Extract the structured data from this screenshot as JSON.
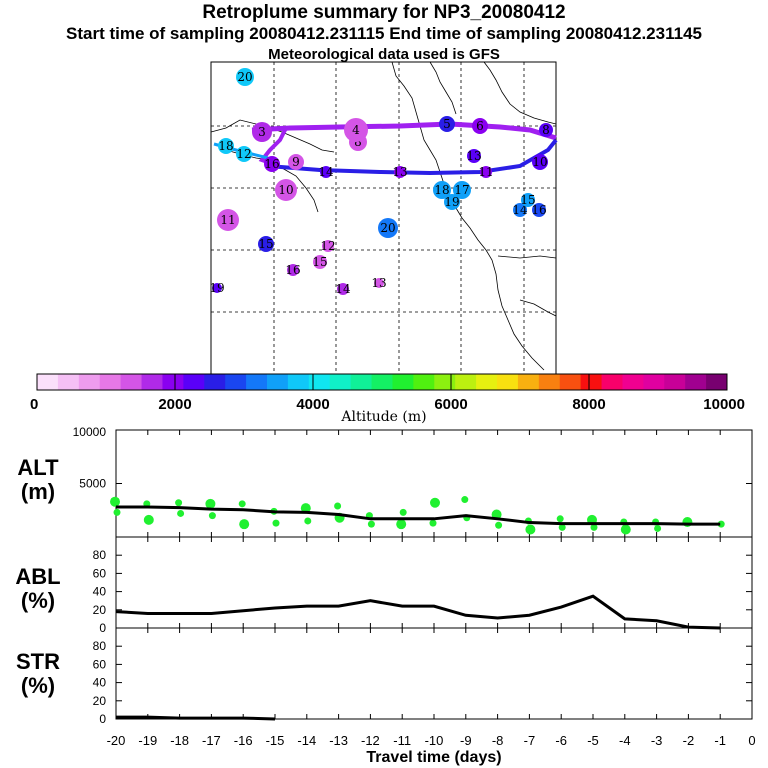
{
  "header": {
    "title": "Retroplume summary for NP3_20080412",
    "sampling_line": "Start time of sampling 20080412.231115     End time of sampling 20080412.231145",
    "met_line": "Meteorological data used is GFS"
  },
  "colorbar": {
    "tick_labels": [
      "0",
      "2000",
      "4000",
      "6000",
      "8000",
      "10000"
    ],
    "label": "Altitude (m)",
    "colors": [
      "#fbe0fb",
      "#f5c0f5",
      "#ee9cee",
      "#e678e6",
      "#d455e6",
      "#b02ae8",
      "#8a00f0",
      "#5a00f8",
      "#2a1ee6",
      "#1a46f0",
      "#1478f8",
      "#10a0f8",
      "#10c8f8",
      "#10e6f0",
      "#10f0c8",
      "#10f098",
      "#14f064",
      "#20f030",
      "#50f010",
      "#8cf010",
      "#bcf010",
      "#e6f010",
      "#f8e010",
      "#f8b010",
      "#f88010",
      "#f85010",
      "#f81010",
      "#f8006a",
      "#f00090",
      "#e000a0",
      "#c80098",
      "#a00090",
      "#780070"
    ]
  },
  "map": {
    "markers": [
      {
        "label": "20",
        "color": "#10c8f8"
      },
      {
        "label": "3",
        "color": "#b02ae8"
      },
      {
        "label": "8",
        "color": "#d455e6"
      },
      {
        "label": "4",
        "color": "#d455e6"
      },
      {
        "label": "5",
        "color": "#2a1ee6"
      },
      {
        "label": "6",
        "color": "#8a00f0"
      },
      {
        "label": "18",
        "color": "#10c8f8"
      },
      {
        "label": "12",
        "color": "#10c8f8"
      },
      {
        "label": "16",
        "color": "#8a00f0"
      },
      {
        "label": "9",
        "color": "#d455e6"
      },
      {
        "label": "14",
        "color": "#5a00f8"
      },
      {
        "label": "13",
        "color": "#8a00f0"
      },
      {
        "label": "11",
        "color": "#8a00f0"
      },
      {
        "label": "10",
        "color": "#d455e6"
      },
      {
        "label": "11",
        "color": "#d455e6"
      },
      {
        "label": "15",
        "color": "#2a1ee6"
      },
      {
        "label": "12",
        "color": "#d455e6"
      },
      {
        "label": "15",
        "color": "#d455e6"
      },
      {
        "label": "16",
        "color": "#b02ae8"
      },
      {
        "label": "14",
        "color": "#b02ae8"
      },
      {
        "label": "13",
        "color": "#d455e6"
      },
      {
        "label": "19",
        "color": "#5a00f8"
      },
      {
        "label": "20",
        "color": "#1478f8"
      },
      {
        "label": "18",
        "color": "#10a0f8"
      },
      {
        "label": "17",
        "color": "#10a0f8"
      },
      {
        "label": "19",
        "color": "#10a0f8"
      },
      {
        "label": "14",
        "color": "#1478f8"
      },
      {
        "label": "16",
        "color": "#1a46f0"
      },
      {
        "label": "15",
        "color": "#10a0f8"
      },
      {
        "label": "13",
        "color": "#5a00f8"
      },
      {
        "label": "10",
        "color": "#5a00f8"
      },
      {
        "label": "8",
        "color": "#5a00f8"
      }
    ]
  },
  "chart_data": [
    {
      "type": "line",
      "panel": "ALT",
      "ylabel": "ALT\n(m)",
      "ylabel_lines": [
        "ALT",
        "(m)"
      ],
      "ylim": [
        0,
        10000
      ],
      "yticks": [
        0,
        5000,
        10000
      ],
      "ytick_labels": [
        "5000",
        "10000"
      ],
      "x": [
        -20,
        -19,
        -18,
        -17,
        -16,
        -15,
        -14,
        -13,
        -12,
        -11,
        -10,
        -9,
        -8,
        -7,
        -6,
        -5,
        -4,
        -3,
        -2,
        -1
      ],
      "values": [
        2800,
        2800,
        2750,
        2600,
        2550,
        2350,
        2300,
        2100,
        1700,
        1700,
        1700,
        2000,
        1700,
        1350,
        1250,
        1250,
        1250,
        1250,
        1200,
        1200
      ],
      "scatter_series": {
        "name": "particle clusters",
        "color": "#20f030",
        "points": [
          {
            "x": -20,
            "y": 3300
          },
          {
            "x": -20,
            "y": 2300
          },
          {
            "x": -19,
            "y": 3100
          },
          {
            "x": -19,
            "y": 1600
          },
          {
            "x": -18,
            "y": 3200
          },
          {
            "x": -18,
            "y": 2200
          },
          {
            "x": -17,
            "y": 3100
          },
          {
            "x": -17,
            "y": 2000
          },
          {
            "x": -16,
            "y": 3100
          },
          {
            "x": -16,
            "y": 1200
          },
          {
            "x": -15,
            "y": 2400
          },
          {
            "x": -15,
            "y": 1300
          },
          {
            "x": -14,
            "y": 2700
          },
          {
            "x": -14,
            "y": 1500
          },
          {
            "x": -13,
            "y": 2900
          },
          {
            "x": -13,
            "y": 1800
          },
          {
            "x": -12,
            "y": 2000
          },
          {
            "x": -12,
            "y": 1200
          },
          {
            "x": -11,
            "y": 1200
          },
          {
            "x": -11,
            "y": 2300
          },
          {
            "x": -10,
            "y": 1300
          },
          {
            "x": -10,
            "y": 3200
          },
          {
            "x": -9,
            "y": 3500
          },
          {
            "x": -9,
            "y": 1800
          },
          {
            "x": -8,
            "y": 2100
          },
          {
            "x": -8,
            "y": 1100
          },
          {
            "x": -7,
            "y": 1500
          },
          {
            "x": -7,
            "y": 700
          },
          {
            "x": -6,
            "y": 1700
          },
          {
            "x": -6,
            "y": 900
          },
          {
            "x": -5,
            "y": 1600
          },
          {
            "x": -5,
            "y": 900
          },
          {
            "x": -4,
            "y": 1400
          },
          {
            "x": -4,
            "y": 700
          },
          {
            "x": -3,
            "y": 1400
          },
          {
            "x": -3,
            "y": 800
          },
          {
            "x": -2,
            "y": 1400
          },
          {
            "x": -1,
            "y": 1200
          }
        ]
      }
    },
    {
      "type": "line",
      "panel": "ABL",
      "ylabel_lines": [
        "ABL",
        "(%)"
      ],
      "ylim": [
        0,
        100
      ],
      "yticks": [
        0,
        20,
        40,
        60,
        80
      ],
      "ytick_labels": [
        "0",
        "20",
        "40",
        "60",
        "80"
      ],
      "x": [
        -20,
        -19,
        -18,
        -17,
        -16,
        -15,
        -14,
        -13,
        -12,
        -11,
        -10,
        -9,
        -8,
        -7,
        -6,
        -5,
        -4,
        -3,
        -2,
        -1
      ],
      "values": [
        18,
        16,
        16,
        16,
        19,
        22,
        24,
        24,
        30,
        24,
        24,
        14,
        11,
        14,
        23,
        35,
        10,
        8,
        1,
        0
      ]
    },
    {
      "type": "line",
      "panel": "STR",
      "ylabel_lines": [
        "STR",
        "(%)"
      ],
      "ylim": [
        0,
        100
      ],
      "yticks": [
        0,
        20,
        40,
        60,
        80
      ],
      "ytick_labels": [
        "0",
        "20",
        "40",
        "60",
        "80"
      ],
      "x": [
        -20,
        -19,
        -18,
        -17,
        -16,
        -15
      ],
      "values": [
        2,
        2,
        1,
        1,
        1,
        0
      ]
    }
  ],
  "xaxis": {
    "label": "Travel time (days)",
    "ticks": [
      -20,
      -19,
      -18,
      -17,
      -16,
      -15,
      -14,
      -13,
      -12,
      -11,
      -10,
      -9,
      -8,
      -7,
      -6,
      -5,
      -4,
      -3,
      -2,
      -1,
      0
    ],
    "tick_labels": [
      "-20",
      "-19",
      "-18",
      "-17",
      "-16",
      "-15",
      "-14",
      "-13",
      "-12",
      "-11",
      "-10",
      "-9",
      "-8",
      "-7",
      "-6",
      "-5",
      "-4",
      "-3",
      "-2",
      "-1",
      "0"
    ]
  }
}
